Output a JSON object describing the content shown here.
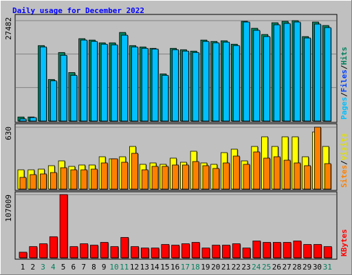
{
  "chart_data": [
    {
      "type": "bar",
      "title": "Daily usage for December 2022",
      "ylim": [
        0,
        27482
      ],
      "yticks": [
        27482
      ],
      "ylabel_parts": [
        {
          "text": "Pages",
          "color": "#00c0ff"
        },
        {
          "text": "Files",
          "color": "#0040ff"
        },
        {
          "text": "Hits",
          "color": "#00805c"
        }
      ],
      "ylabel_separator": "/",
      "series": [
        {
          "name": "Hits",
          "color": "#00805c",
          "values": [
            1100,
            1100,
            20650,
            11370,
            18760,
            13270,
            22550,
            22170,
            21410,
            21410,
            24250,
            20650,
            20280,
            19900,
            12890,
            19900,
            19520,
            19140,
            22170,
            21790,
            21970,
            21030,
            27290,
            25390,
            23690,
            26910,
            27290,
            27482,
            23120,
            27100,
            26150
          ]
        },
        {
          "name": "Files",
          "color": "#00c0ff",
          "values": [
            570,
            950,
            20280,
            10990,
            18000,
            12500,
            22170,
            21790,
            21030,
            20850,
            23500,
            20280,
            19900,
            19710,
            12500,
            19520,
            19140,
            18760,
            21790,
            21410,
            21600,
            20650,
            27100,
            24830,
            23120,
            26340,
            26720,
            27100,
            22740,
            26530,
            25580
          ]
        }
      ]
    },
    {
      "type": "bar",
      "ylim": [
        0,
        630
      ],
      "yticks": [
        630
      ],
      "ylabel_parts": [
        {
          "text": "Sites",
          "color": "#ff8000"
        },
        {
          "text": "Visits",
          "color": "#e0e000"
        }
      ],
      "ylabel_separator": "/",
      "series": [
        {
          "name": "Visits",
          "color": "#ffff00",
          "values": [
            196,
            196,
            203,
            238,
            287,
            231,
            245,
            245,
            329,
            308,
            329,
            434,
            252,
            266,
            252,
            315,
            273,
            385,
            266,
            252,
            371,
            406,
            287,
            434,
            532,
            434,
            532,
            532,
            329,
            581,
            434
          ]
        },
        {
          "name": "Sites",
          "color": "#ff8000",
          "values": [
            119,
            147,
            154,
            168,
            217,
            196,
            196,
            203,
            266,
            308,
            273,
            364,
            196,
            231,
            231,
            245,
            245,
            280,
            238,
            210,
            266,
            336,
            252,
            378,
            315,
            329,
            294,
            266,
            238,
            630,
            259
          ]
        }
      ]
    },
    {
      "type": "bar",
      "ylim": [
        0,
        107009
      ],
      "yticks": [
        107009
      ],
      "ylabel_parts": [
        {
          "text": "KBytes",
          "color": "#ff0000"
        }
      ],
      "ylabel_separator": "/",
      "series": [
        {
          "name": "KBytes",
          "color": "#ff0000",
          "values": [
            9500,
            19000,
            23800,
            35700,
            107009,
            19000,
            23800,
            21400,
            26100,
            19000,
            34500,
            19000,
            16600,
            16600,
            22600,
            21400,
            23800,
            26100,
            16600,
            21400,
            21400,
            23800,
            16600,
            28500,
            26100,
            26100,
            26100,
            28500,
            22600,
            22600,
            19000
          ]
        }
      ],
      "categories": [
        "1",
        "2",
        "3",
        "4",
        "5",
        "6",
        "7",
        "8",
        "9",
        "10",
        "11",
        "12",
        "13",
        "14",
        "15",
        "16",
        "17",
        "18",
        "19",
        "20",
        "21",
        "22",
        "23",
        "24",
        "25",
        "26",
        "27",
        "28",
        "29",
        "30",
        "31"
      ],
      "category_colors": [
        "#000000",
        "#000000",
        "#00805c",
        "#00805c",
        "#000000",
        "#000000",
        "#000000",
        "#000000",
        "#000000",
        "#00805c",
        "#00805c",
        "#000000",
        "#000000",
        "#000000",
        "#000000",
        "#000000",
        "#00805c",
        "#00805c",
        "#000000",
        "#000000",
        "#000000",
        "#000000",
        "#000000",
        "#00805c",
        "#00805c",
        "#000000",
        "#000000",
        "#000000",
        "#000000",
        "#000000",
        "#00805c"
      ]
    }
  ]
}
